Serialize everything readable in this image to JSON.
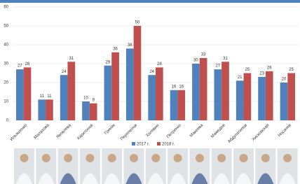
{
  "chart_data": {
    "type": "bar",
    "categories": [
      "Ильяшенко",
      "Малахова",
      "Яковлева",
      "Харитонов",
      "Гриняк",
      "Перепелов",
      "Халявин",
      "Петренко",
      "Макеева",
      "Мамедов",
      "Абдулатипов",
      "Хисковская",
      "Носачев"
    ],
    "series": [
      {
        "name": "2017 г.",
        "color": "#4f81bd",
        "values": [
          27,
          11,
          24,
          10,
          29,
          38,
          24,
          16,
          30,
          27,
          21,
          23,
          20
        ]
      },
      {
        "name": "2018 г.",
        "color": "#c0504d",
        "values": [
          28,
          11,
          31,
          9,
          36,
          50,
          28,
          16,
          33,
          31,
          25,
          26,
          25
        ]
      }
    ],
    "ylim": [
      0,
      60
    ],
    "yticks": [
      0,
      10,
      20,
      30,
      40,
      50,
      60
    ],
    "grid": true
  }
}
